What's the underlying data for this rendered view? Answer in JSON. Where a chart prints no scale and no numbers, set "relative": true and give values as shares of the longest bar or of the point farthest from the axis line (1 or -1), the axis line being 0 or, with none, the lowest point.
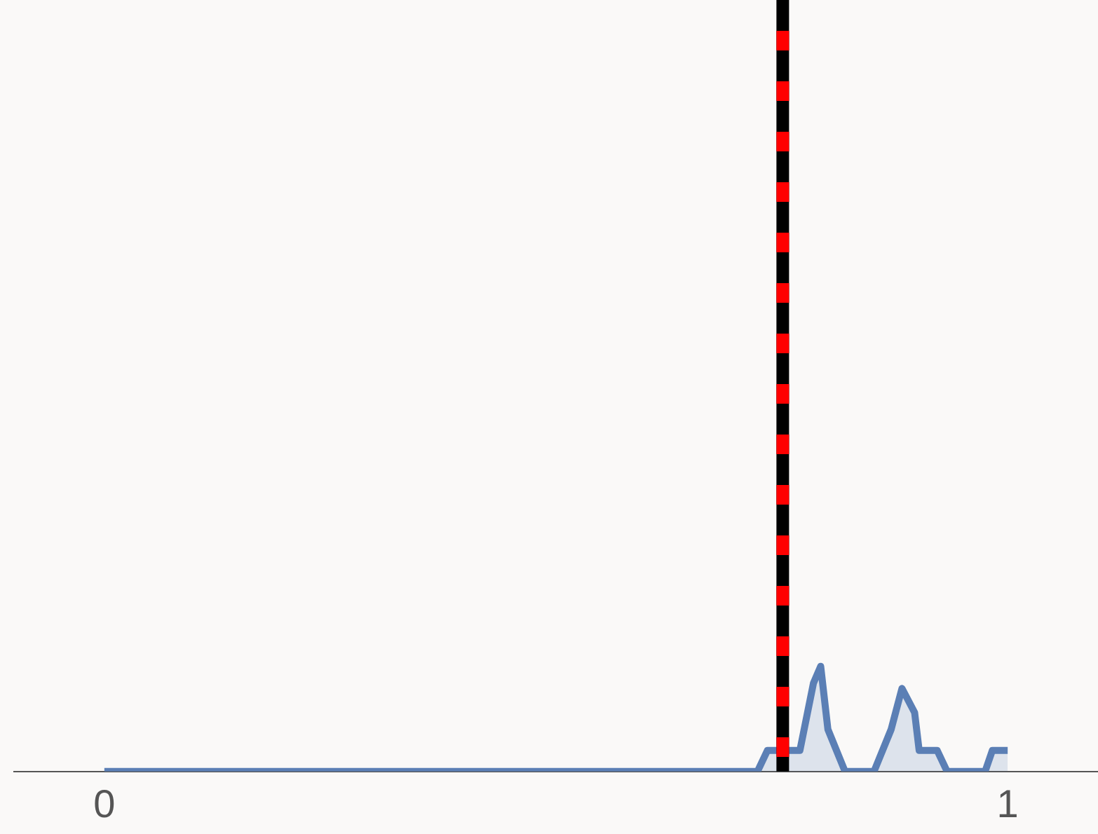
{
  "chart_data": {
    "type": "area",
    "relative": true,
    "x": [
      0,
      0.723,
      0.734,
      0.77,
      0.785,
      0.793,
      0.801,
      0.82,
      0.852,
      0.871,
      0.883,
      0.897,
      0.902,
      0.922,
      0.933,
      0.975,
      0.983,
      1.0
    ],
    "series": [
      {
        "color": "#5b7fb5",
        "values": [
          0,
          0,
          0.2,
          0.2,
          0.84,
          1,
          0.4,
          0,
          0,
          0.4,
          0.79,
          0.56,
          0.2,
          0.2,
          0,
          0,
          0.2,
          0.2
        ]
      }
    ],
    "xlim": [
      -0.1,
      1.1
    ],
    "xticks": [
      0,
      1
    ],
    "grid": false,
    "legend": false,
    "marker": "none",
    "ref_lines": [
      {
        "axis": "x",
        "value": 0.751,
        "color": "#000000",
        "line_style": "solid"
      },
      {
        "axis": "x",
        "value": 0.751,
        "color": "#ff0000",
        "line_style": "dashed"
      }
    ]
  }
}
